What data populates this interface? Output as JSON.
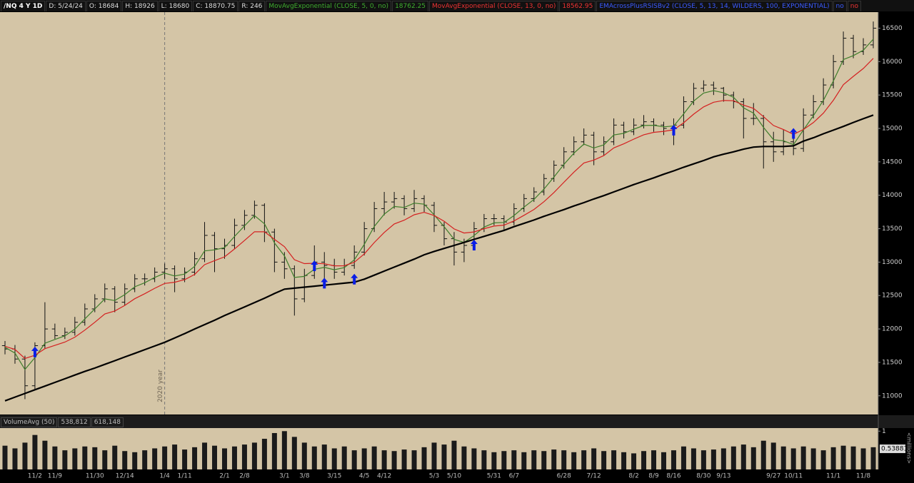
{
  "header": {
    "symbol": "/NQ 4 Y 1D",
    "fields": [
      "D: 5/24/24",
      "O: 18684",
      "H: 18926",
      "L: 18680",
      "C: 18870.75",
      "R: 246"
    ],
    "study_values": [
      18762.25,
      18562.95
    ],
    "flags": [
      "no",
      "no"
    ]
  },
  "chart_data": {
    "type": "ohlc",
    "categories": [
      null,
      null,
      null,
      "11/2",
      null,
      "11/9",
      null,
      null,
      null,
      "11/30",
      null,
      null,
      "12/14",
      null,
      null,
      null,
      "1/4",
      null,
      "1/11",
      null,
      null,
      null,
      "2/1",
      null,
      "2/8",
      null,
      null,
      null,
      "3/1",
      null,
      "3/8",
      null,
      null,
      "3/15",
      null,
      null,
      "4/5",
      null,
      "4/12",
      null,
      null,
      null,
      null,
      "5/3",
      null,
      "5/10",
      null,
      null,
      null,
      "5/31",
      null,
      "6/7",
      null,
      null,
      null,
      null,
      "6/28",
      null,
      null,
      "7/12",
      null,
      null,
      null,
      "8/2",
      null,
      "8/9",
      null,
      "8/16",
      null,
      null,
      "8/30",
      null,
      "9/13",
      null,
      null,
      null,
      null,
      "9/27",
      null,
      "10/11",
      null,
      null,
      null,
      "11/1",
      null,
      null,
      "11/8",
      null
    ],
    "bars": [
      [
        11750,
        11820,
        11620,
        11700
      ],
      [
        11700,
        11760,
        11480,
        11550
      ],
      [
        11550,
        11600,
        10950,
        11150
      ],
      [
        11150,
        11800,
        11100,
        11750
      ],
      [
        11750,
        12400,
        11700,
        12000
      ],
      [
        12000,
        12080,
        11850,
        11900
      ],
      [
        11900,
        12020,
        11850,
        11950
      ],
      [
        11950,
        12180,
        11900,
        12100
      ],
      [
        12100,
        12380,
        12050,
        12300
      ],
      [
        12300,
        12520,
        12250,
        12450
      ],
      [
        12450,
        12680,
        12400,
        12600
      ],
      [
        12600,
        12640,
        12250,
        12400
      ],
      [
        12400,
        12680,
        12350,
        12600
      ],
      [
        12600,
        12820,
        12550,
        12750
      ],
      [
        12750,
        12830,
        12650,
        12750
      ],
      [
        12750,
        12920,
        12700,
        12850
      ],
      [
        12850,
        12980,
        12750,
        12900
      ],
      [
        12900,
        12950,
        12550,
        12750
      ],
      [
        12750,
        12920,
        12700,
        12850
      ],
      [
        12850,
        13150,
        12800,
        13050
      ],
      [
        13050,
        13600,
        13000,
        13400
      ],
      [
        13400,
        13450,
        12850,
        13200
      ],
      [
        13200,
        13350,
        13050,
        13250
      ],
      [
        13250,
        13650,
        13200,
        13550
      ],
      [
        13550,
        13780,
        13480,
        13700
      ],
      [
        13700,
        13920,
        13650,
        13850
      ],
      [
        13850,
        13880,
        13300,
        13450
      ],
      [
        13450,
        13500,
        12850,
        13000
      ],
      [
        13000,
        13150,
        12750,
        12900
      ],
      [
        12900,
        12950,
        12200,
        12450
      ],
      [
        12450,
        12900,
        12400,
        12800
      ],
      [
        12800,
        13250,
        12750,
        13000
      ],
      [
        13000,
        13150,
        12750,
        12950
      ],
      [
        12950,
        13050,
        12750,
        12850
      ],
      [
        12850,
        13050,
        12800,
        12950
      ],
      [
        12950,
        13250,
        12900,
        13150
      ],
      [
        13150,
        13600,
        13100,
        13500
      ],
      [
        13500,
        13900,
        13450,
        13800
      ],
      [
        13800,
        14050,
        13700,
        13900
      ],
      [
        13900,
        14050,
        13800,
        13950
      ],
      [
        13950,
        14000,
        13700,
        13800
      ],
      [
        13800,
        14080,
        13750,
        13950
      ],
      [
        13950,
        14000,
        13750,
        13850
      ],
      [
        13850,
        13900,
        13450,
        13550
      ],
      [
        13550,
        13600,
        13250,
        13350
      ],
      [
        13350,
        13450,
        12950,
        13150
      ],
      [
        13150,
        13350,
        13000,
        13250
      ],
      [
        13250,
        13600,
        13200,
        13500
      ],
      [
        13500,
        13720,
        13450,
        13650
      ],
      [
        13650,
        13720,
        13550,
        13650
      ],
      [
        13650,
        13700,
        13480,
        13600
      ],
      [
        13600,
        13880,
        13550,
        13800
      ],
      [
        13800,
        14020,
        13750,
        13950
      ],
      [
        13950,
        14120,
        13900,
        14050
      ],
      [
        14050,
        14320,
        14000,
        14250
      ],
      [
        14250,
        14520,
        14200,
        14450
      ],
      [
        14450,
        14720,
        14400,
        14650
      ],
      [
        14650,
        14880,
        14600,
        14800
      ],
      [
        14800,
        15000,
        14750,
        14900
      ],
      [
        14900,
        14950,
        14450,
        14650
      ],
      [
        14650,
        14880,
        14600,
        14800
      ],
      [
        14800,
        15150,
        14750,
        15050
      ],
      [
        15050,
        15100,
        14850,
        14950
      ],
      [
        14950,
        15150,
        14900,
        15050
      ],
      [
        15050,
        15200,
        15000,
        15100
      ],
      [
        15100,
        15150,
        14950,
        15050
      ],
      [
        15050,
        15100,
        14900,
        15000
      ],
      [
        15000,
        15150,
        14750,
        15050
      ],
      [
        15050,
        15480,
        15000,
        15400
      ],
      [
        15400,
        15680,
        15350,
        15600
      ],
      [
        15600,
        15720,
        15550,
        15650
      ],
      [
        15650,
        15700,
        15500,
        15600
      ],
      [
        15600,
        15620,
        15400,
        15500
      ],
      [
        15500,
        15550,
        15300,
        15400
      ],
      [
        15400,
        15450,
        14850,
        15150
      ],
      [
        15150,
        15380,
        15050,
        15150
      ],
      [
        15150,
        15200,
        14400,
        14800
      ],
      [
        14800,
        14950,
        14500,
        14650
      ],
      [
        14650,
        14980,
        14600,
        14800
      ],
      [
        14800,
        14900,
        14600,
        14700
      ],
      [
        14700,
        15300,
        14650,
        15200
      ],
      [
        15200,
        15500,
        15150,
        15400
      ],
      [
        15400,
        15750,
        15350,
        15650
      ],
      [
        15650,
        16100,
        15600,
        16000
      ],
      [
        16000,
        16450,
        15950,
        16350
      ],
      [
        16350,
        16400,
        16050,
        16150
      ],
      [
        16150,
        16350,
        16100,
        16250
      ],
      [
        16250,
        16600,
        16200,
        16500
      ]
    ],
    "bar_color": "#111111",
    "series": [
      {
        "name": "MovAvgExponential (CLOSE, 5, 0, no)",
        "color": "#3e7d2a",
        "values": [
          11725,
          11638,
          11394,
          11572,
          11786,
          11843,
          11897,
          11998,
          12149,
          12300,
          12450,
          12425,
          12513,
          12631,
          12691,
          12770,
          12835,
          12793,
          12821,
          12936,
          13168,
          13184,
          13217,
          13384,
          13542,
          13696,
          13573,
          13287,
          13093,
          12772,
          12786,
          12893,
          12921,
          12886,
          12918,
          13034,
          13267,
          13533,
          13717,
          13833,
          13817,
          13883,
          13867,
          13708,
          13529,
          13340,
          13295,
          13397,
          13524,
          13587,
          13593,
          13697,
          13823,
          13937,
          14093,
          14272,
          14461,
          14630,
          14765,
          14708,
          14754,
          14902,
          14926,
          14988,
          15044,
          15047,
          15024,
          15037,
          15218,
          15409,
          15530,
          15565,
          15533,
          15466,
          15308,
          15229,
          15015,
          14832,
          14816,
          14758,
          14979,
          15190,
          15420,
          15710,
          16030,
          16090,
          16170,
          16335
        ]
      },
      {
        "name": "MovAvgExponential (CLOSE, 13, 0, no)",
        "color": "#d42020",
        "values": [
          11740,
          11693,
          11558,
          11606,
          11705,
          11754,
          11803,
          11877,
          11983,
          12100,
          12225,
          12269,
          12352,
          12452,
          12527,
          12608,
          12681,
          12699,
          12737,
          12816,
          12962,
          13022,
          13079,
          13197,
          13323,
          13455,
          13454,
          13340,
          13230,
          13036,
          12977,
          12983,
          12975,
          12944,
          12946,
          12998,
          13123,
          13292,
          13444,
          13571,
          13628,
          13709,
          13745,
          13697,
          13611,
          13496,
          13435,
          13451,
          13501,
          13539,
          13554,
          13616,
          13700,
          13788,
          13904,
          14041,
          14194,
          14346,
          14484,
          14526,
          14594,
          14709,
          14770,
          14840,
          14905,
          14942,
          14956,
          14980,
          15085,
          15214,
          15323,
          15392,
          15419,
          15414,
          15349,
          15300,
          15175,
          15044,
          14983,
          14912,
          14984,
          15088,
          15229,
          15422,
          15654,
          15779,
          15897,
          16048
        ]
      },
      {
        "name": "EMAcrossPlusRSISBv2 (CLOSE, 5, 13, 14, WILDERS, 100, EXPONENTIAL)",
        "color": "#000000",
        "values": [
          10925,
          10980,
          11035,
          11090,
          11145,
          11200,
          11255,
          11310,
          11365,
          11415,
          11470,
          11525,
          11580,
          11635,
          11690,
          11745,
          11800,
          11865,
          11930,
          12000,
          12065,
          12130,
          12200,
          12265,
          12330,
          12395,
          12460,
          12530,
          12595,
          12610,
          12625,
          12640,
          12655,
          12670,
          12685,
          12700,
          12745,
          12805,
          12865,
          12925,
          12985,
          13045,
          13110,
          13160,
          13205,
          13250,
          13295,
          13340,
          13385,
          13430,
          13475,
          13530,
          13580,
          13630,
          13685,
          13735,
          13785,
          13840,
          13890,
          13945,
          13995,
          14050,
          14105,
          14160,
          14210,
          14260,
          14315,
          14365,
          14420,
          14470,
          14520,
          14575,
          14615,
          14650,
          14690,
          14720,
          14730,
          14730,
          14730,
          14740,
          14810,
          14860,
          14920,
          14975,
          15030,
          15090,
          15145,
          15200
        ]
      }
    ],
    "signals": {
      "color": "#0a1ee6",
      "values": [
        null,
        null,
        null,
        11650,
        null,
        null,
        null,
        null,
        null,
        null,
        null,
        null,
        null,
        null,
        null,
        null,
        null,
        null,
        null,
        null,
        null,
        null,
        null,
        null,
        null,
        null,
        null,
        null,
        null,
        null,
        null,
        12940,
        12680,
        null,
        null,
        12740,
        null,
        null,
        null,
        null,
        null,
        null,
        null,
        null,
        null,
        null,
        null,
        13250,
        null,
        null,
        null,
        null,
        null,
        null,
        null,
        null,
        null,
        null,
        null,
        null,
        null,
        null,
        null,
        null,
        null,
        null,
        null,
        14970,
        null,
        null,
        null,
        null,
        null,
        null,
        null,
        null,
        null,
        null,
        null,
        14920,
        null,
        null,
        null,
        null,
        null,
        null,
        null,
        null
      ]
    },
    "annotation": {
      "text": "2020 year",
      "at": "1/4"
    },
    "ylim": [
      10720,
      16740
    ],
    "yticks": [
      11000,
      11500,
      12000,
      12500,
      13000,
      13500,
      14000,
      14500,
      15000,
      15500,
      16000,
      16500
    ],
    "background": "#d4c5a6",
    "volume": {
      "name": "VolumeAvg (50)",
      "readouts": [
        "538,812",
        "618,148"
      ],
      "color": "#1a1a1a",
      "values": [
        0.62,
        0.55,
        0.7,
        0.9,
        0.75,
        0.6,
        0.5,
        0.55,
        0.6,
        0.58,
        0.5,
        0.62,
        0.48,
        0.45,
        0.5,
        0.55,
        0.6,
        0.65,
        0.52,
        0.58,
        0.7,
        0.62,
        0.55,
        0.6,
        0.65,
        0.7,
        0.8,
        0.95,
        1.0,
        0.85,
        0.7,
        0.6,
        0.65,
        0.55,
        0.6,
        0.5,
        0.55,
        0.6,
        0.5,
        0.48,
        0.52,
        0.5,
        0.58,
        0.7,
        0.65,
        0.75,
        0.6,
        0.55,
        0.5,
        0.45,
        0.48,
        0.5,
        0.45,
        0.5,
        0.48,
        0.52,
        0.5,
        0.45,
        0.5,
        0.55,
        0.48,
        0.5,
        0.45,
        0.42,
        0.48,
        0.5,
        0.45,
        0.5,
        0.6,
        0.55,
        0.5,
        0.52,
        0.55,
        0.6,
        0.65,
        0.58,
        0.75,
        0.7,
        0.6,
        0.55,
        0.6,
        0.55,
        0.5,
        0.58,
        0.62,
        0.6,
        0.55,
        0.58
      ],
      "ylim": [
        0,
        1.08
      ],
      "yticks": [
        1
      ],
      "last": 0.53881,
      "unit_label": "<millions>"
    }
  }
}
